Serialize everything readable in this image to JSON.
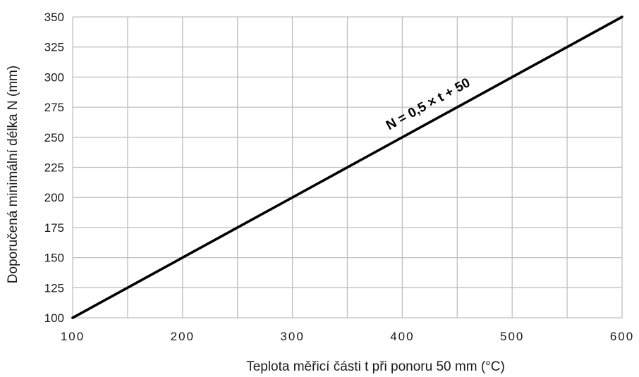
{
  "chart_data": {
    "type": "line",
    "title": "",
    "xlabel": "Teplota měřicí části t při ponoru 50 mm (°C)",
    "ylabel": "Doporučená minimální délka N (mm)",
    "xlim": [
      100,
      600
    ],
    "ylim": [
      100,
      350
    ],
    "xticks": [
      100,
      200,
      300,
      400,
      500,
      600
    ],
    "yticks": [
      100,
      125,
      150,
      175,
      200,
      225,
      250,
      275,
      300,
      325,
      350
    ],
    "x_minor_gridlines": [
      150,
      250,
      350,
      450,
      550
    ],
    "grid": true,
    "series": [
      {
        "x": [
          100,
          600
        ],
        "y": [
          100,
          350
        ]
      }
    ],
    "annotation": "N = 0,5 × t + 50",
    "colors": {
      "line": "#000000",
      "grid": "#c0c0c0"
    }
  }
}
